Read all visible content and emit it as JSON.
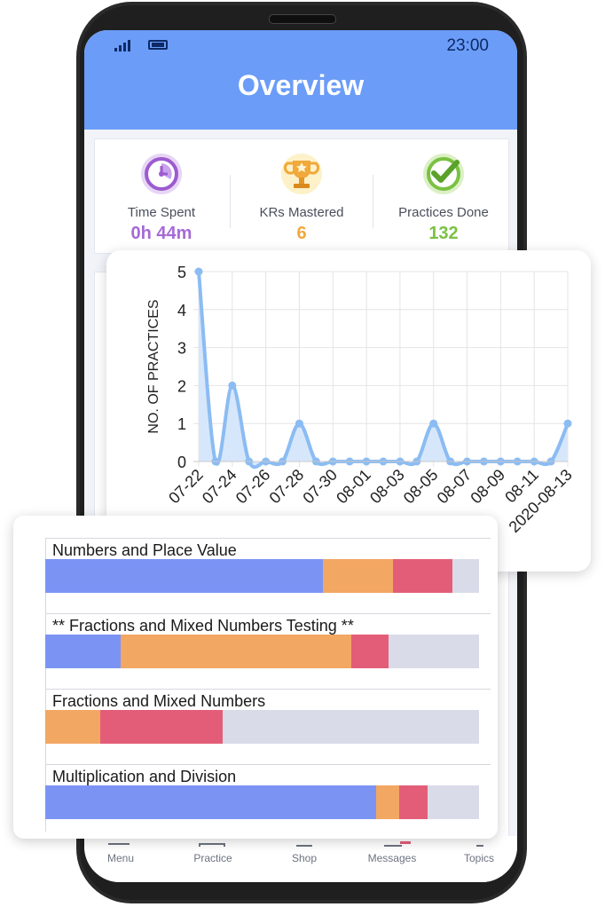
{
  "status_bar": {
    "time": "23:00",
    "signal": "signal-icon",
    "battery": "battery-icon"
  },
  "header": {
    "title": "Overview"
  },
  "stats": [
    {
      "label": "Time Spent",
      "value": "0h 44m",
      "color": "#a56ad6",
      "icon": "clock-icon"
    },
    {
      "label": "KRs Mastered",
      "value": "6",
      "color": "#f0a93a",
      "icon": "trophy-icon"
    },
    {
      "label": "Practices Done",
      "value": "132",
      "color": "#7ac142",
      "icon": "checkmark-icon"
    }
  ],
  "bottom_nav": [
    {
      "label": "Menu",
      "icon": "menu-icon"
    },
    {
      "label": "Practice",
      "icon": "book-icon"
    },
    {
      "label": "Shop",
      "icon": "cart-icon"
    },
    {
      "label": "Messages",
      "icon": "bell-icon"
    },
    {
      "label": "Topics",
      "icon": "topics-icon"
    }
  ],
  "chart_data": {
    "type": "area",
    "ylabel": "NO. OF PRACTICES",
    "xlabel": "",
    "title": "",
    "ylim": [
      0,
      5
    ],
    "yticks": [
      0,
      1,
      2,
      3,
      4,
      5
    ],
    "grid": true,
    "x": [
      "07-22",
      "07-23",
      "07-24",
      "07-25",
      "07-26",
      "07-27",
      "07-28",
      "07-29",
      "07-30",
      "07-31",
      "08-01",
      "08-02",
      "08-03",
      "08-04",
      "08-05",
      "08-06",
      "08-07",
      "08-08",
      "08-09",
      "08-10",
      "08-11",
      "08-12",
      "2020-08-13"
    ],
    "xtick_labels": [
      "07-22",
      "07-24",
      "07-26",
      "07-28",
      "07-30",
      "08-01",
      "08-03",
      "08-05",
      "08-07",
      "08-09",
      "08-11",
      "2020-08-13"
    ],
    "series": [
      {
        "values": [
          5,
          0,
          2,
          0,
          0,
          0,
          1,
          0,
          0,
          0,
          0,
          0,
          0,
          0,
          1,
          0,
          0,
          0,
          0,
          0,
          0,
          0,
          1
        ],
        "color": "#8bbcf3"
      }
    ]
  },
  "topics": {
    "colors": {
      "blue": "#7b94f4",
      "orange": "#f2a763",
      "red": "#e35d78",
      "gray": "#d9dbe9"
    },
    "items": [
      {
        "name": "Numbers and Place Value",
        "segments": [
          {
            "color": "blue",
            "value": 0.641
          },
          {
            "color": "orange",
            "value": 0.161
          },
          {
            "color": "red",
            "value": 0.137
          },
          {
            "color": "gray",
            "value": 0.061
          }
        ]
      },
      {
        "name": "** Fractions and Mixed Numbers Testing **",
        "segments": [
          {
            "color": "blue",
            "value": 0.174
          },
          {
            "color": "orange",
            "value": 0.532
          },
          {
            "color": "red",
            "value": 0.086
          },
          {
            "color": "gray",
            "value": 0.208
          }
        ]
      },
      {
        "name": "Fractions and Mixed Numbers",
        "segments": [
          {
            "color": "orange",
            "value": 0.127
          },
          {
            "color": "red",
            "value": 0.281
          },
          {
            "color": "gray",
            "value": 0.592
          }
        ]
      },
      {
        "name": "Multiplication and Division",
        "segments": [
          {
            "color": "blue",
            "value": 0.763
          },
          {
            "color": "orange",
            "value": 0.053
          },
          {
            "color": "red",
            "value": 0.065
          },
          {
            "color": "gray",
            "value": 0.119
          }
        ]
      }
    ]
  }
}
